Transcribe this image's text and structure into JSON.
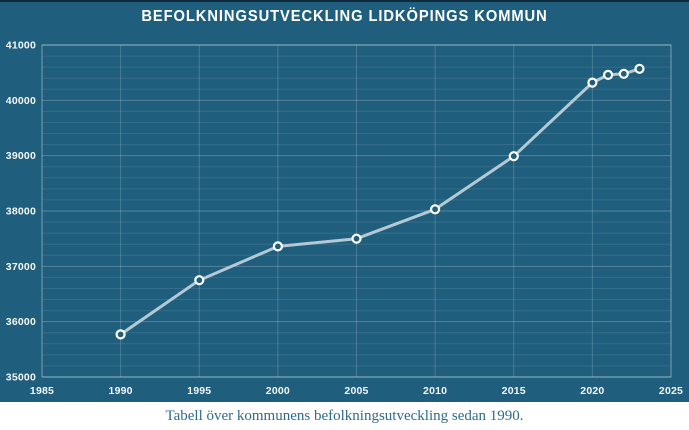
{
  "title": "BEFOLKNINGSUTVECKLING LIDKÖPINGS KOMMUN",
  "caption": "Tabell över kommunens befolkningsutveckling sedan 1990.",
  "colors": {
    "top_strip": "#0d2b3b",
    "background": "#1f5e7d",
    "grid_minor": "rgba(255,255,255,0.10)",
    "grid_major": "rgba(255,255,255,0.24)",
    "grid_vertical": "rgba(255,255,255,0.18)",
    "plot_border": "rgba(255,255,255,0.40)",
    "axis_text": "#f2f7fa",
    "title_text": "#ffffff",
    "line": "#b3c9d6",
    "marker_stroke": "#ffffff",
    "marker_fill": "#1f5e7d",
    "caption_text": "#2e6b89"
  },
  "chart_data": {
    "type": "line",
    "title": "BEFOLKNINGSUTVECKLING LIDKÖPINGS KOMMUN",
    "xlabel": "",
    "ylabel": "",
    "x": [
      1990,
      1995,
      2000,
      2005,
      2010,
      2015,
      2020,
      2021,
      2022,
      2023
    ],
    "values": [
      35770,
      36750,
      37360,
      37500,
      38030,
      38990,
      40320,
      40460,
      40480,
      40570
    ],
    "series_name": "Befolkning",
    "xlim": [
      1985,
      2025
    ],
    "ylim": [
      35000,
      41000
    ],
    "x_ticks": [
      1985,
      1990,
      1995,
      2000,
      2005,
      2010,
      2015,
      2020,
      2025
    ],
    "y_ticks": [
      35000,
      36000,
      37000,
      38000,
      39000,
      40000,
      41000
    ],
    "y_minor_step": 200,
    "grid": true,
    "legend": false,
    "marker": "open-circle"
  }
}
